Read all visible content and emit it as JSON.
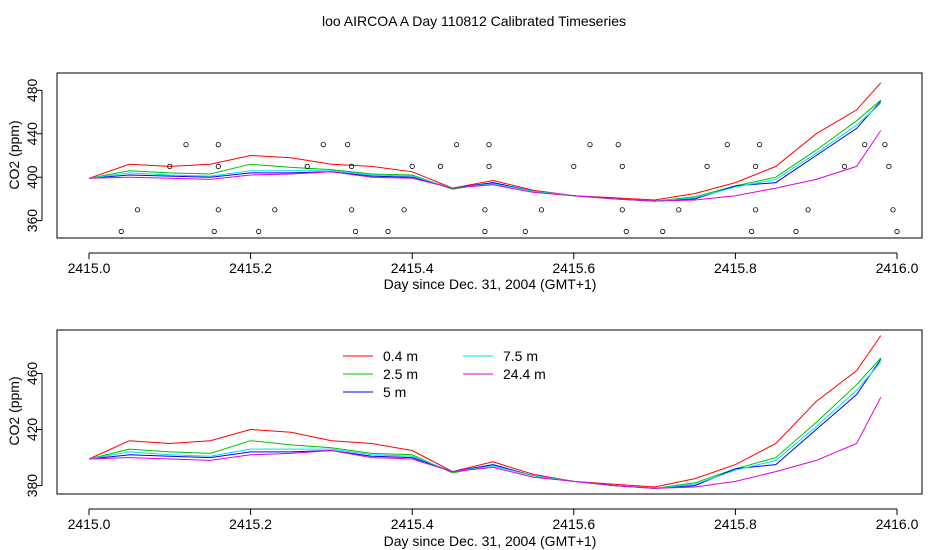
{
  "title": "loo AIRCOA A  Day 110812  Calibrated Timeseries",
  "series_colors": {
    "0.4 m": "#ff0000",
    "2.5 m": "#00c000",
    "5 m": "#0000ff",
    "7.5 m": "#00e0e0",
    "24.4 m": "#e000e0"
  },
  "chart_data": [
    {
      "type": "line",
      "panel": "top",
      "xlabel": "Day since Dec. 31, 2004 (GMT+1)",
      "ylabel": "CO2 (ppm)",
      "xlim": [
        2415.0,
        2416.0
      ],
      "ylim": [
        344,
        496
      ],
      "xticks": [
        "2415.0",
        "2415.2",
        "2415.4",
        "2415.6",
        "2415.8",
        "2416.0"
      ],
      "yticks": [
        "360",
        "400",
        "440",
        "480"
      ],
      "x": [
        2415.0,
        2415.05,
        2415.1,
        2415.15,
        2415.2,
        2415.25,
        2415.3,
        2415.35,
        2415.4,
        2415.45,
        2415.5,
        2415.55,
        2415.6,
        2415.65,
        2415.7,
        2415.75,
        2415.8,
        2415.85,
        2415.9,
        2415.95,
        2415.98
      ],
      "series": [
        {
          "name": "0.4 m",
          "values": [
            399,
            412,
            410,
            412,
            420,
            418,
            412,
            410,
            405,
            390,
            397,
            388,
            383,
            381,
            379,
            385,
            395,
            410,
            440,
            462,
            487
          ]
        },
        {
          "name": "2.5 m",
          "values": [
            399,
            406,
            404,
            403,
            412,
            409,
            407,
            403,
            402,
            389,
            395,
            387,
            383,
            380,
            378,
            382,
            392,
            400,
            425,
            452,
            471
          ]
        },
        {
          "name": "5 m",
          "values": [
            399,
            402,
            401,
            400,
            404,
            404,
            405,
            401,
            400,
            390,
            395,
            387,
            383,
            380,
            378,
            380,
            392,
            395,
            420,
            445,
            470
          ]
        },
        {
          "name": "7.5 m",
          "values": [
            399,
            404,
            402,
            401,
            406,
            406,
            406,
            402,
            401,
            390,
            394,
            387,
            383,
            380,
            378,
            381,
            391,
            398,
            422,
            448,
            468
          ]
        },
        {
          "name": "24.4 m",
          "values": [
            399,
            400,
            399,
            398,
            402,
            403,
            405,
            400,
            399,
            390,
            393,
            386,
            383,
            380,
            378,
            379,
            383,
            390,
            398,
            410,
            443
          ]
        }
      ],
      "markers": {
        "x": [
          2415.04,
          2415.06,
          2415.1,
          2415.12,
          2415.155,
          2415.16,
          2415.16,
          2415.16,
          2415.21,
          2415.23,
          2415.27,
          2415.29,
          2415.32,
          2415.325,
          2415.325,
          2415.33,
          2415.37,
          2415.39,
          2415.4,
          2415.435,
          2415.455,
          2415.49,
          2415.49,
          2415.495,
          2415.495,
          2415.54,
          2415.56,
          2415.6,
          2415.62,
          2415.655,
          2415.66,
          2415.66,
          2415.665,
          2415.71,
          2415.73,
          2415.765,
          2415.79,
          2415.82,
          2415.825,
          2415.825,
          2415.83,
          2415.875,
          2415.89,
          2415.935,
          2415.96,
          2415.985,
          2415.99,
          2415.995,
          2416.0
        ],
        "y": [
          350,
          370,
          410,
          430,
          350,
          370,
          410,
          430,
          350,
          370,
          410,
          430,
          430,
          410,
          370,
          350,
          350,
          370,
          410,
          410,
          430,
          370,
          350,
          410,
          430,
          350,
          370,
          410,
          430,
          430,
          410,
          370,
          350,
          350,
          370,
          410,
          430,
          350,
          370,
          410,
          430,
          350,
          370,
          410,
          430,
          430,
          410,
          370,
          350
        ]
      }
    },
    {
      "type": "line",
      "panel": "bottom",
      "xlabel": "Day since Dec. 31, 2004 (GMT+1)",
      "ylabel": "CO2 (ppm)",
      "xlim": [
        2415.0,
        2416.0
      ],
      "ylim": [
        374,
        491
      ],
      "xticks": [
        "2415.0",
        "2415.2",
        "2415.4",
        "2415.6",
        "2415.8",
        "2416.0"
      ],
      "yticks": [
        "380",
        "420",
        "460"
      ],
      "legend": {
        "placement": "top-center",
        "entries": [
          "0.4 m",
          "2.5 m",
          "5 m",
          "7.5 m",
          "24.4 m"
        ]
      },
      "x": [
        2415.0,
        2415.05,
        2415.1,
        2415.15,
        2415.2,
        2415.25,
        2415.3,
        2415.35,
        2415.4,
        2415.45,
        2415.5,
        2415.55,
        2415.6,
        2415.65,
        2415.7,
        2415.75,
        2415.8,
        2415.85,
        2415.9,
        2415.95,
        2415.98
      ],
      "series": [
        {
          "name": "0.4 m",
          "values": [
            399,
            412,
            410,
            412,
            420,
            418,
            412,
            410,
            405,
            390,
            397,
            388,
            383,
            381,
            379,
            385,
            395,
            410,
            440,
            462,
            487
          ]
        },
        {
          "name": "2.5 m",
          "values": [
            399,
            406,
            404,
            403,
            412,
            409,
            407,
            403,
            402,
            389,
            395,
            387,
            383,
            380,
            378,
            382,
            392,
            400,
            425,
            452,
            471
          ]
        },
        {
          "name": "5 m",
          "values": [
            399,
            402,
            401,
            400,
            404,
            404,
            405,
            401,
            400,
            390,
            395,
            387,
            383,
            380,
            378,
            380,
            392,
            395,
            420,
            445,
            470
          ]
        },
        {
          "name": "7.5 m",
          "values": [
            399,
            404,
            402,
            401,
            406,
            406,
            406,
            402,
            401,
            390,
            394,
            387,
            383,
            380,
            378,
            381,
            391,
            398,
            422,
            448,
            468
          ]
        },
        {
          "name": "24.4 m",
          "values": [
            399,
            400,
            399,
            398,
            402,
            403,
            405,
            400,
            399,
            390,
            393,
            386,
            383,
            380,
            378,
            379,
            383,
            390,
            398,
            410,
            443
          ]
        }
      ]
    }
  ]
}
